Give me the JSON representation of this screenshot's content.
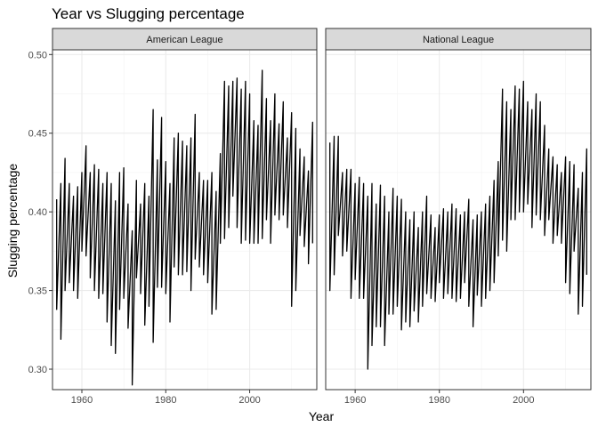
{
  "chart_data": {
    "type": "line",
    "title": "Year vs Slugging percentage",
    "xlabel": "Year",
    "ylabel": "Slugging percentage",
    "xlim": [
      1953,
      2016
    ],
    "ylim": [
      0.287,
      0.503
    ],
    "x_ticks": [
      "1960",
      "1980",
      "2000"
    ],
    "x_tick_values": [
      1960,
      1980,
      2000
    ],
    "y_ticks": [
      "0.30",
      "0.35",
      "0.40",
      "0.45",
      "0.50"
    ],
    "y_tick_values": [
      0.3,
      0.35,
      0.4,
      0.45,
      0.5
    ],
    "grid": true,
    "line_color": "#000000",
    "strip_fill": "#d9d9d9",
    "panels": [
      {
        "name": "American League",
        "segments": [
          [
            1954,
            0.408,
            0.338
          ],
          [
            1955,
            0.418,
            0.319
          ],
          [
            1956,
            0.434,
            0.35
          ],
          [
            1957,
            0.418,
            0.355
          ],
          [
            1958,
            0.41,
            0.35
          ],
          [
            1959,
            0.416,
            0.345
          ],
          [
            1960,
            0.425,
            0.375
          ],
          [
            1961,
            0.442,
            0.372
          ],
          [
            1962,
            0.425,
            0.358
          ],
          [
            1963,
            0.43,
            0.35
          ],
          [
            1964,
            0.427,
            0.345
          ],
          [
            1965,
            0.418,
            0.348
          ],
          [
            1966,
            0.425,
            0.33
          ],
          [
            1967,
            0.418,
            0.315
          ],
          [
            1968,
            0.407,
            0.31
          ],
          [
            1969,
            0.425,
            0.338
          ],
          [
            1970,
            0.428,
            0.345
          ],
          [
            1971,
            0.405,
            0.326
          ],
          [
            1972,
            0.388,
            0.29
          ],
          [
            1973,
            0.42,
            0.358
          ],
          [
            1974,
            0.405,
            0.348
          ],
          [
            1975,
            0.418,
            0.328
          ],
          [
            1976,
            0.41,
            0.34
          ],
          [
            1977,
            0.465,
            0.317
          ],
          [
            1978,
            0.433,
            0.352
          ],
          [
            1979,
            0.46,
            0.352
          ],
          [
            1980,
            0.432,
            0.348
          ],
          [
            1981,
            0.418,
            0.33
          ],
          [
            1982,
            0.447,
            0.365
          ],
          [
            1983,
            0.45,
            0.36
          ],
          [
            1984,
            0.445,
            0.36
          ],
          [
            1985,
            0.442,
            0.362
          ],
          [
            1986,
            0.447,
            0.35
          ],
          [
            1987,
            0.462,
            0.37
          ],
          [
            1988,
            0.425,
            0.365
          ],
          [
            1989,
            0.42,
            0.36
          ],
          [
            1990,
            0.42,
            0.355
          ],
          [
            1991,
            0.425,
            0.335
          ],
          [
            1992,
            0.413,
            0.338
          ],
          [
            1993,
            0.437,
            0.38
          ],
          [
            1994,
            0.483,
            0.383
          ],
          [
            1995,
            0.48,
            0.39
          ],
          [
            1996,
            0.483,
            0.41
          ],
          [
            1997,
            0.485,
            0.39
          ],
          [
            1998,
            0.478,
            0.38
          ],
          [
            1999,
            0.483,
            0.382
          ],
          [
            2000,
            0.475,
            0.38
          ],
          [
            2001,
            0.458,
            0.38
          ],
          [
            2002,
            0.455,
            0.38
          ],
          [
            2003,
            0.49,
            0.383
          ],
          [
            2004,
            0.472,
            0.395
          ],
          [
            2005,
            0.458,
            0.38
          ],
          [
            2006,
            0.475,
            0.398
          ],
          [
            2007,
            0.456,
            0.395
          ],
          [
            2008,
            0.47,
            0.398
          ],
          [
            2009,
            0.447,
            0.39
          ],
          [
            2010,
            0.463,
            0.34
          ],
          [
            2011,
            0.453,
            0.35
          ],
          [
            2012,
            0.44,
            0.385
          ],
          [
            2013,
            0.435,
            0.378
          ],
          [
            2014,
            0.426,
            0.367
          ],
          [
            2015,
            0.457,
            0.38
          ]
        ]
      },
      {
        "name": "National League",
        "segments": [
          [
            1954,
            0.444,
            0.35
          ],
          [
            1955,
            0.448,
            0.36
          ],
          [
            1956,
            0.448,
            0.385
          ],
          [
            1957,
            0.425,
            0.372
          ],
          [
            1958,
            0.427,
            0.375
          ],
          [
            1959,
            0.427,
            0.345
          ],
          [
            1960,
            0.418,
            0.357
          ],
          [
            1961,
            0.422,
            0.345
          ],
          [
            1962,
            0.418,
            0.345
          ],
          [
            1963,
            0.41,
            0.3
          ],
          [
            1964,
            0.418,
            0.315
          ],
          [
            1965,
            0.405,
            0.327
          ],
          [
            1966,
            0.417,
            0.327
          ],
          [
            1967,
            0.41,
            0.315
          ],
          [
            1968,
            0.4,
            0.335
          ],
          [
            1969,
            0.415,
            0.335
          ],
          [
            1970,
            0.41,
            0.34
          ],
          [
            1971,
            0.408,
            0.325
          ],
          [
            1972,
            0.4,
            0.33
          ],
          [
            1973,
            0.395,
            0.327
          ],
          [
            1974,
            0.4,
            0.337
          ],
          [
            1975,
            0.39,
            0.33
          ],
          [
            1976,
            0.4,
            0.34
          ],
          [
            1977,
            0.41,
            0.348
          ],
          [
            1978,
            0.398,
            0.345
          ],
          [
            1979,
            0.39,
            0.343
          ],
          [
            1980,
            0.398,
            0.355
          ],
          [
            1981,
            0.402,
            0.345
          ],
          [
            1982,
            0.4,
            0.348
          ],
          [
            1983,
            0.405,
            0.345
          ],
          [
            1984,
            0.402,
            0.343
          ],
          [
            1985,
            0.398,
            0.345
          ],
          [
            1986,
            0.4,
            0.355
          ],
          [
            1987,
            0.408,
            0.34
          ],
          [
            1988,
            0.395,
            0.327
          ],
          [
            1989,
            0.398,
            0.347
          ],
          [
            1990,
            0.4,
            0.34
          ],
          [
            1991,
            0.405,
            0.345
          ],
          [
            1992,
            0.41,
            0.35
          ],
          [
            1993,
            0.42,
            0.355
          ],
          [
            1994,
            0.432,
            0.372
          ],
          [
            1995,
            0.478,
            0.382
          ],
          [
            1996,
            0.47,
            0.375
          ],
          [
            1997,
            0.465,
            0.395
          ],
          [
            1998,
            0.48,
            0.395
          ],
          [
            1999,
            0.478,
            0.4
          ],
          [
            2000,
            0.483,
            0.4
          ],
          [
            2001,
            0.47,
            0.405
          ],
          [
            2002,
            0.465,
            0.39
          ],
          [
            2003,
            0.475,
            0.398
          ],
          [
            2004,
            0.47,
            0.395
          ],
          [
            2005,
            0.455,
            0.385
          ],
          [
            2006,
            0.44,
            0.395
          ],
          [
            2007,
            0.435,
            0.38
          ],
          [
            2008,
            0.43,
            0.385
          ],
          [
            2009,
            0.425,
            0.38
          ],
          [
            2010,
            0.435,
            0.355
          ],
          [
            2011,
            0.432,
            0.348
          ],
          [
            2012,
            0.43,
            0.375
          ],
          [
            2013,
            0.415,
            0.335
          ],
          [
            2014,
            0.425,
            0.34
          ],
          [
            2015,
            0.44,
            0.36
          ]
        ]
      }
    ]
  }
}
